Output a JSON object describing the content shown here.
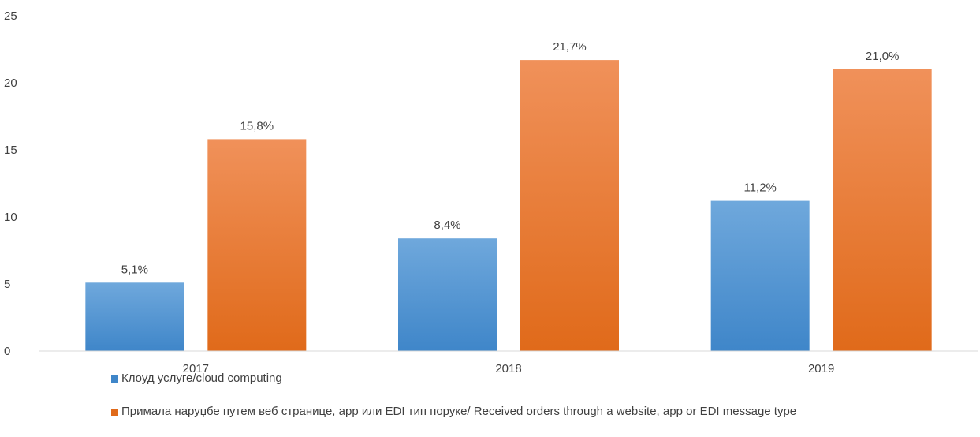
{
  "chart_data": {
    "type": "bar",
    "categories": [
      "2017",
      "2018",
      "2019"
    ],
    "series": [
      {
        "name": "Клоуд услуге/cloud computing",
        "values": [
          5.1,
          8.4,
          11.2
        ],
        "labels": [
          "5,1%",
          "8,4%",
          "11,2%"
        ],
        "color_top": "#6fa8dc",
        "color_bottom": "#3f86c9"
      },
      {
        "name": "Примала наруџбе путем веб странице, app или EDI тип поруке/ Received orders through a website, app or EDI message type",
        "values": [
          15.8,
          21.7,
          21.0
        ],
        "labels": [
          "15,8%",
          "21,7%",
          "21,0%"
        ],
        "color_top": "#f0915a",
        "color_bottom": "#e06a1a"
      }
    ],
    "yticks": [
      "0",
      "5",
      "10",
      "15",
      "20",
      "25"
    ],
    "ylim": [
      0,
      25
    ],
    "grid": false,
    "legend_position": "bottom-left"
  }
}
